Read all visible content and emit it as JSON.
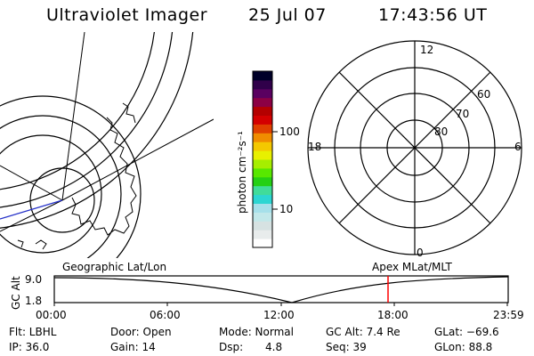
{
  "header": {
    "instrument": "Ultraviolet Imager",
    "date": "25 Jul 07",
    "time": "17:43:56 UT"
  },
  "colorbar": {
    "unit_label": "photon cm⁻²s⁻¹",
    "ticks": [
      "100",
      "10"
    ],
    "colors": [
      "#ffffff",
      "#e8ecec",
      "#d6e2e2",
      "#c2e8ea",
      "#a6e0ea",
      "#2cd6d2",
      "#40dc9a",
      "#24d014",
      "#58e800",
      "#a6ee00",
      "#e8f000",
      "#f4c800",
      "#f08c00",
      "#e04000",
      "#d40000",
      "#b40000",
      "#8c0044",
      "#5a0060",
      "#30004a",
      "#000028"
    ]
  },
  "left_map": {
    "label": "Geographic Lat/Lon"
  },
  "polar_plot": {
    "label": "Apex  MLat/MLT",
    "mlt_labels": [
      "12",
      "18",
      "6",
      "0"
    ],
    "mlat_labels": [
      "60",
      "70",
      "80"
    ]
  },
  "timeline": {
    "ylabel": "GC Alt",
    "y_ticks": [
      "9.0",
      "1.8"
    ],
    "x_ticks": [
      "00:00",
      "06:00",
      "12:00",
      "18:00",
      "23:59"
    ],
    "marker_color": "#ff0000"
  },
  "status": {
    "flt": "Flt: LBHL",
    "ip": "IP: 36.0",
    "door": "Door: Open",
    "gain": "Gain: 14",
    "mode": "Mode: Normal",
    "dsp_label": "Dsp:",
    "dsp_value": "4.8",
    "gcalt": "GC Alt: 7.4 Re",
    "seq": "Seq: 39",
    "glat": "GLat: −69.6",
    "glon": "GLon:  88.8"
  }
}
